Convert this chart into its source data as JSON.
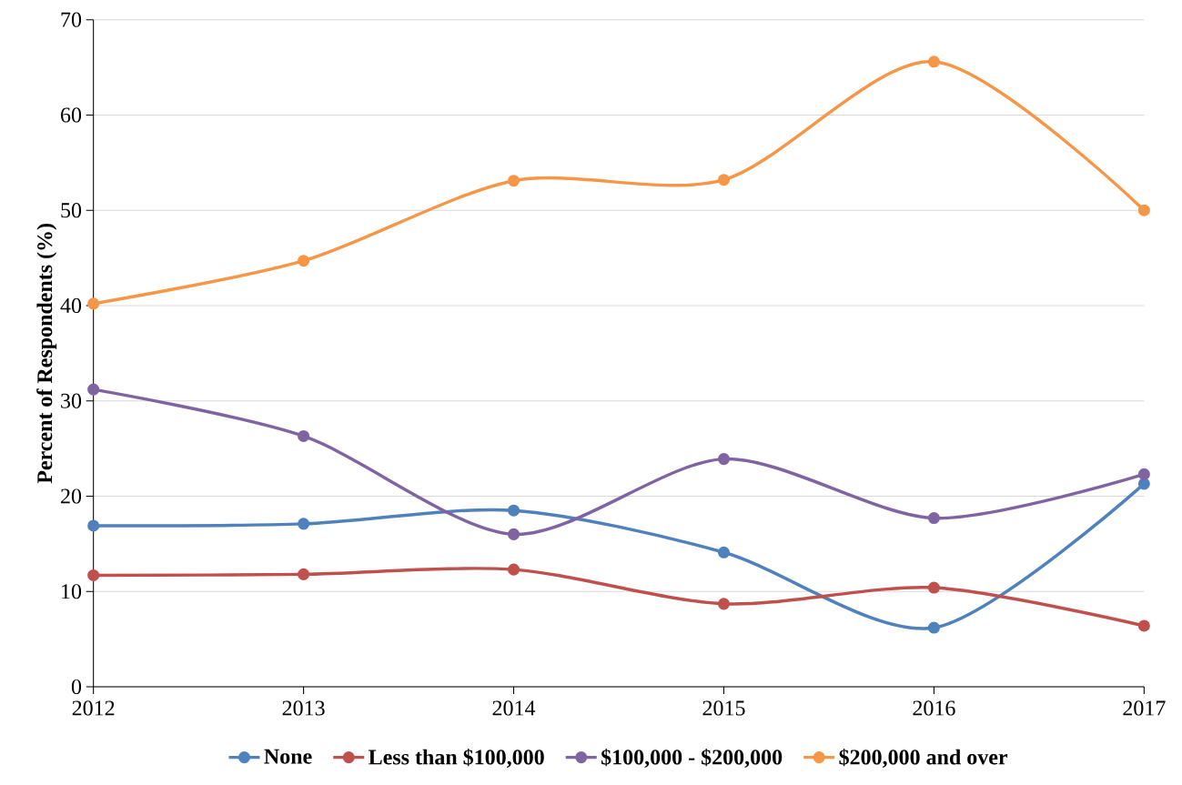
{
  "chart_data": {
    "type": "line",
    "ylabel": "Percent of Respondents (%)",
    "x": [
      2012,
      2013,
      2014,
      2015,
      2016,
      2017
    ],
    "xlim": [
      2012,
      2017
    ],
    "xticks": [
      2012,
      2013,
      2014,
      2015,
      2016,
      2017
    ],
    "ylim": [
      0,
      70
    ],
    "yticks": [
      0,
      10,
      20,
      30,
      40,
      50,
      60,
      70
    ],
    "grid": "y",
    "legend": "bottom",
    "marker": "circle",
    "line_style": "solid",
    "series": [
      {
        "name": "None",
        "color": "#4f81bd",
        "values": [
          16.9,
          17.1,
          18.5,
          14.1,
          6.2,
          21.3
        ]
      },
      {
        "name": "Less than $100,000",
        "color": "#c0504d",
        "values": [
          11.7,
          11.8,
          12.3,
          8.7,
          10.4,
          6.4
        ]
      },
      {
        "name": "$100,000 - $200,000",
        "color": "#8064a2",
        "values": [
          31.2,
          26.3,
          16.0,
          23.9,
          17.7,
          22.3
        ]
      },
      {
        "name": "$200,000 and over",
        "color": "#f79646",
        "values": [
          40.2,
          44.7,
          53.1,
          53.2,
          65.6,
          50.0
        ]
      }
    ]
  }
}
